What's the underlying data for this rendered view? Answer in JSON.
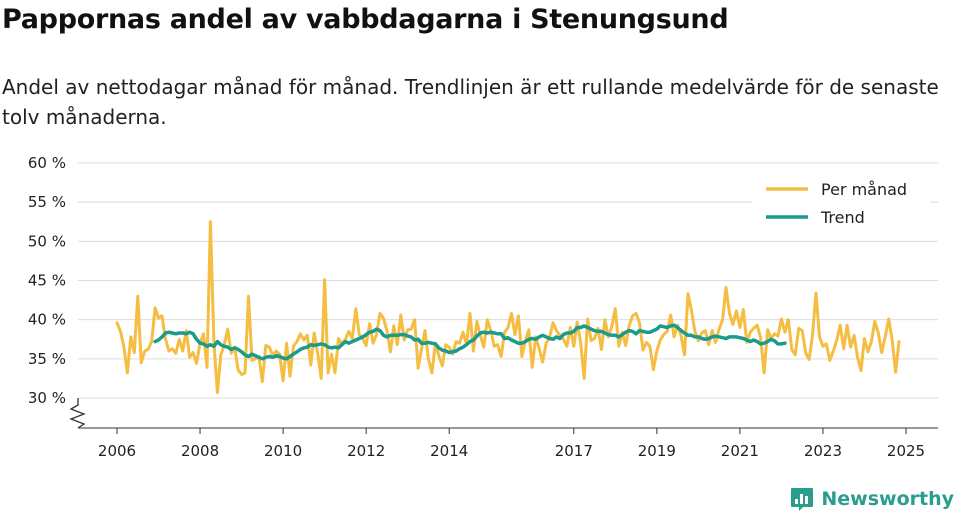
{
  "header": {
    "title": "Pappornas andel av vabbdagarna i Stenungsund",
    "subtitle": "Andel av nettodagar månad för månad. Trendlinjen är ett rullande medelvärde för de senaste tolv månaderna."
  },
  "brand": {
    "name": "Newsworthy",
    "icon": "bar-chart-logo-icon",
    "color": "#2a9d8f"
  },
  "chart_data": {
    "type": "line",
    "title": "Pappornas andel av vabbdagarna i Stenungsund",
    "xlabel": "",
    "ylabel": "",
    "ylim": [
      26,
      60
    ],
    "xlim": [
      2005.6,
      2025.75
    ],
    "yticks": [
      30,
      35,
      40,
      45,
      50,
      55,
      60
    ],
    "ytick_labels": [
      "30 %",
      "35 %",
      "40 %",
      "45 %",
      "50 %",
      "55 %",
      "60 %"
    ],
    "xticks": [
      2006,
      2008,
      2010,
      2012,
      2014,
      2017,
      2019,
      2021,
      2023,
      2025
    ],
    "xtick_labels": [
      "2006",
      "2008",
      "2010",
      "2012",
      "2014",
      "2017",
      "2019",
      "2021",
      "2023",
      "2025"
    ],
    "grid": true,
    "legend_position": "top-right",
    "series": [
      {
        "name": "Per månad",
        "color": "#f5bd42",
        "start": 2006.0,
        "step": 0.08333,
        "values": [
          39.6,
          38.5,
          36.5,
          33.2,
          37.8,
          35.8,
          43.0,
          34.5,
          36.0,
          36.2,
          37.2,
          41.5,
          40.2,
          40.5,
          37.6,
          36.0,
          36.3,
          35.7,
          37.5,
          36.0,
          38.6,
          35.2,
          35.8,
          34.4,
          37.0,
          38.2,
          33.9,
          52.5,
          37.2,
          30.7,
          35.5,
          36.8,
          38.8,
          35.7,
          36.5,
          33.6,
          33.0,
          33.2,
          43.0,
          34.8,
          35.0,
          35.3,
          32.1,
          36.7,
          36.5,
          35.4,
          36.0,
          35.6,
          32.2,
          37.0,
          32.8,
          36.6,
          37.2,
          38.2,
          37.4,
          38.0,
          34.2,
          38.3,
          35.7,
          32.5,
          45.1,
          33.2,
          35.6,
          33.2,
          37.6,
          36.9,
          37.5,
          38.5,
          37.6,
          41.4,
          38.1,
          37.6,
          36.7,
          39.5,
          37.0,
          38.1,
          40.8,
          40.2,
          38.6,
          35.9,
          39.2,
          36.8,
          40.6,
          37.4,
          38.7,
          38.8,
          40.0,
          33.8,
          36.2,
          38.6,
          35.0,
          33.2,
          37.0,
          35.4,
          34.1,
          36.8,
          36.5,
          35.6,
          37.2,
          37.0,
          38.4,
          36.9,
          40.8,
          36.0,
          39.8,
          38.0,
          36.5,
          40.0,
          38.6,
          36.6,
          36.8,
          35.3,
          38.4,
          39.0,
          40.8,
          38.1,
          40.5,
          35.3,
          37.3,
          38.7,
          33.9,
          37.8,
          36.3,
          34.6,
          37.0,
          37.7,
          39.6,
          38.6,
          38.0,
          37.5,
          36.6,
          39.0,
          36.6,
          39.7,
          37.0,
          32.5,
          40.1,
          37.3,
          37.6,
          38.9,
          36.2,
          40.0,
          37.8,
          39.1,
          41.4,
          36.6,
          38.4,
          36.7,
          39.2,
          40.5,
          40.8,
          39.6,
          36.1,
          37.1,
          36.6,
          33.6,
          36.0,
          37.4,
          38.1,
          38.5,
          40.6,
          37.8,
          39.3,
          38.0,
          35.5,
          43.3,
          41.2,
          38.5,
          37.3,
          38.3,
          38.6,
          36.8,
          38.6,
          37.1,
          38.8,
          40.0,
          44.1,
          40.8,
          39.4,
          41.1,
          39.0,
          41.3,
          37.1,
          38.4,
          38.9,
          39.3,
          37.7,
          33.2,
          38.7,
          37.6,
          38.2,
          37.9,
          40.1,
          38.4,
          40.0,
          36.2,
          35.5,
          38.9,
          38.6,
          35.8,
          34.9,
          38.0,
          43.4,
          37.8,
          36.6,
          36.9,
          34.8,
          36.0,
          37.4,
          39.3,
          36.3,
          39.3,
          36.5,
          38.0,
          35.2,
          33.5,
          37.6,
          35.9,
          37.2,
          39.8,
          38.3,
          35.8,
          37.8,
          40.1,
          37.5,
          33.3,
          37.2
        ]
      },
      {
        "name": "Trend",
        "color": "#1a9b8c",
        "start": 2006.917,
        "step": 0.08333,
        "values": [
          37.2,
          37.4,
          37.8,
          38.3,
          38.4,
          38.3,
          38.2,
          38.3,
          38.3,
          38.2,
          38.4,
          38.2,
          37.5,
          37.0,
          36.9,
          36.6,
          36.8,
          36.6,
          37.2,
          36.8,
          36.6,
          36.5,
          36.2,
          36.4,
          36.2,
          35.9,
          35.5,
          35.3,
          35.6,
          35.4,
          35.2,
          35.0,
          35.2,
          35.3,
          35.2,
          35.4,
          35.3,
          35.1,
          35.0,
          35.3,
          35.6,
          35.9,
          36.2,
          36.4,
          36.5,
          36.8,
          36.7,
          36.8,
          36.9,
          36.8,
          36.5,
          36.4,
          36.5,
          36.4,
          36.8,
          37.2,
          37.0,
          37.2,
          37.4,
          37.6,
          37.8,
          38.1,
          38.4,
          38.5,
          38.8,
          38.6,
          38.0,
          37.8,
          38.0,
          38.0,
          38.0,
          38.1,
          38.1,
          37.9,
          37.8,
          37.4,
          37.5,
          37.0,
          37.0,
          37.1,
          37.0,
          36.9,
          36.4,
          36.1,
          36.0,
          35.8,
          35.9,
          36.0,
          36.3,
          36.5,
          36.8,
          37.2,
          37.4,
          37.9,
          38.3,
          38.4,
          38.3,
          38.4,
          38.3,
          38.2,
          38.2,
          37.6,
          37.7,
          37.4,
          37.2,
          37.0,
          37.0,
          37.2,
          37.5,
          37.6,
          37.5,
          37.8,
          38.0,
          37.8,
          37.6,
          37.5,
          37.8,
          37.6,
          38.1,
          38.3,
          38.3,
          38.5,
          39.0,
          39.0,
          39.2,
          39.0,
          38.8,
          38.6,
          38.5,
          38.5,
          38.3,
          38.1,
          38.0,
          38.0,
          37.8,
          38.1,
          38.4,
          38.6,
          38.5,
          38.2,
          38.6,
          38.5,
          38.4,
          38.4,
          38.6,
          38.8,
          39.2,
          39.1,
          39.0,
          39.2,
          39.3,
          39.0,
          38.6,
          38.3,
          38.0,
          38.0,
          37.8,
          37.8,
          37.6,
          37.5,
          37.6,
          37.8,
          37.9,
          37.8,
          37.7,
          37.6,
          37.8,
          37.8,
          37.8,
          37.7,
          37.6,
          37.4,
          37.2,
          37.4,
          37.2,
          36.9,
          37.0,
          37.2,
          37.5,
          37.3,
          36.9,
          36.9,
          37.0
        ]
      }
    ]
  }
}
